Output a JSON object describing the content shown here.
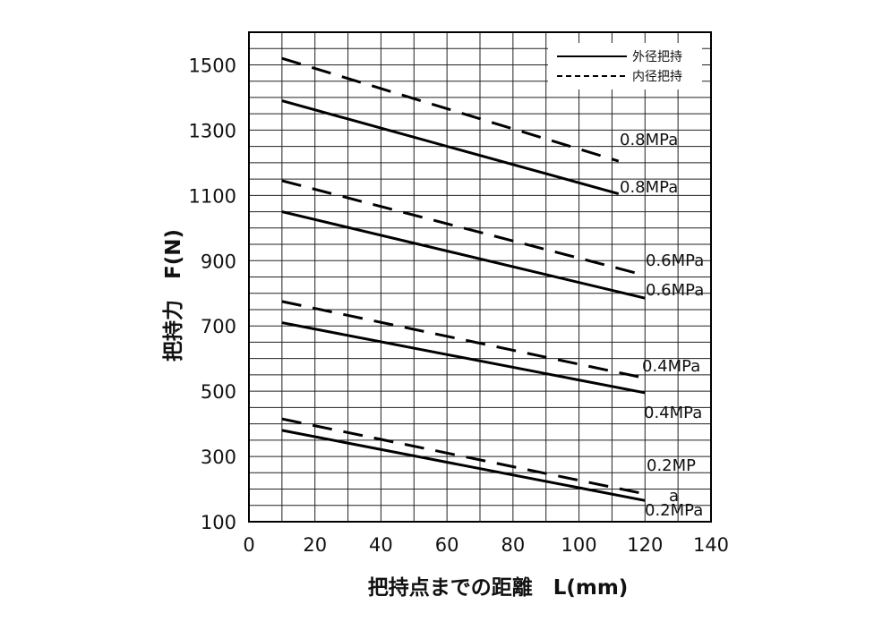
{
  "chart_data": {
    "type": "line",
    "xlabel": "把持点までの距離　L(mm)",
    "ylabel": "把持力　F(N)",
    "xlim": [
      0,
      140
    ],
    "ylim": [
      100,
      1600
    ],
    "x_ticks": [
      0,
      20,
      40,
      60,
      80,
      100,
      120,
      140
    ],
    "y_ticks": [
      100,
      300,
      500,
      700,
      900,
      1100,
      1300,
      1500
    ],
    "grid": true,
    "legend_position": "top-right",
    "legend": [
      {
        "label": "外径把持",
        "style": "solid"
      },
      {
        "label": "内径把持",
        "style": "dashed"
      }
    ],
    "series": [
      {
        "pressure": "0.8MPa",
        "style": "dashed",
        "x": [
          10,
          112
        ],
        "y": [
          1520,
          1205
        ]
      },
      {
        "pressure": "0.8MPa",
        "style": "solid",
        "x": [
          10,
          112
        ],
        "y": [
          1390,
          1105
        ]
      },
      {
        "pressure": "0.6MPa",
        "style": "dashed",
        "x": [
          10,
          120
        ],
        "y": [
          1145,
          855
        ]
      },
      {
        "pressure": "0.6MPa",
        "style": "solid",
        "x": [
          10,
          120
        ],
        "y": [
          1050,
          785
        ]
      },
      {
        "pressure": "0.4MPa",
        "style": "dashed",
        "x": [
          10,
          120
        ],
        "y": [
          775,
          540
        ]
      },
      {
        "pressure": "0.4MPa",
        "style": "solid",
        "x": [
          10,
          120
        ],
        "y": [
          710,
          495
        ]
      },
      {
        "pressure": "0.2MPa",
        "style": "dashed",
        "x": [
          10,
          120
        ],
        "y": [
          415,
          185
        ]
      },
      {
        "pressure": "0.2MPa",
        "style": "solid",
        "x": [
          10,
          120
        ],
        "y": [
          380,
          165
        ]
      }
    ],
    "annotations": [
      {
        "text": "0.8MPa",
        "series": 0
      },
      {
        "text": "0.8MPa",
        "series": 1
      },
      {
        "text": "0.6MPa",
        "series": 2
      },
      {
        "text": "0.6MPa",
        "series": 3
      },
      {
        "text": "0.4MPa",
        "series": 4
      },
      {
        "text": "0.4MPa",
        "series": 5
      },
      {
        "text": "0.2MP",
        "series": 6
      },
      {
        "text": "a",
        "series": 6
      },
      {
        "text": "0.2MPa",
        "series": 7
      }
    ]
  }
}
